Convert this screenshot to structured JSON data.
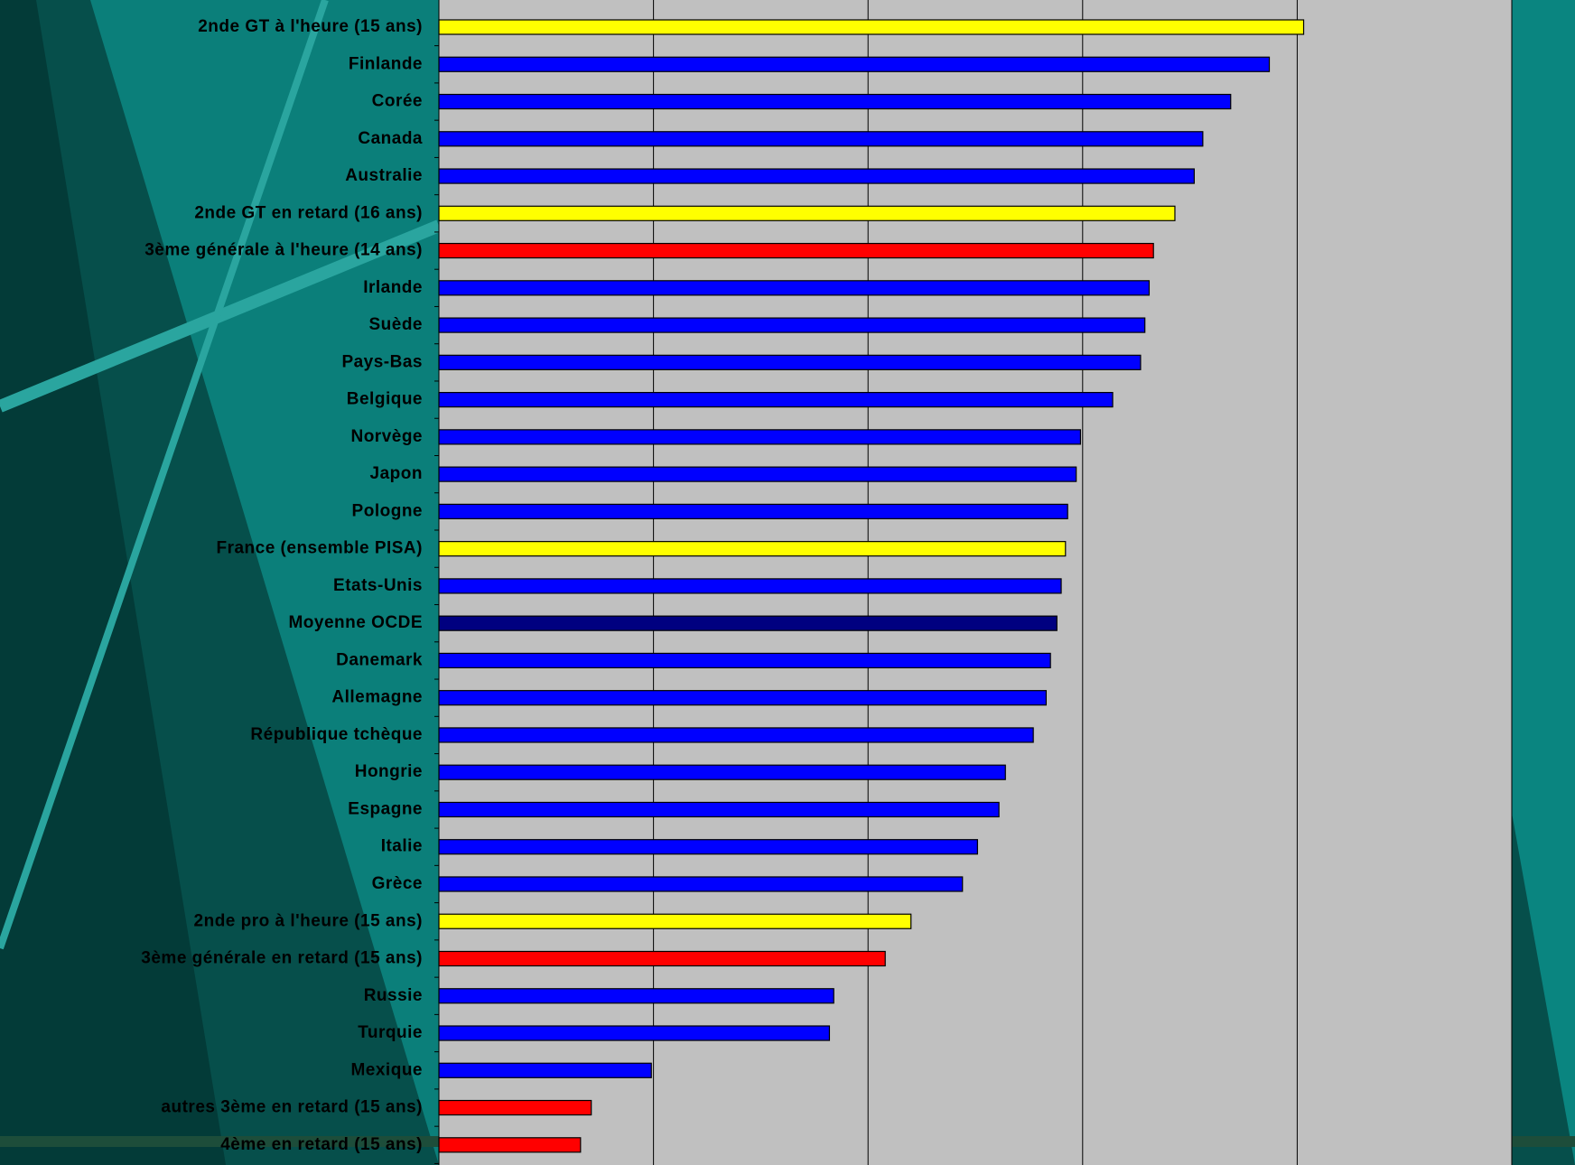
{
  "chart_data": {
    "type": "bar",
    "orientation": "horizontal",
    "categories": [
      "2nde GT à l'heure (15 ans)",
      "Finlande",
      "Corée",
      "Canada",
      "Australie",
      "2nde GT en retard (16 ans)",
      "3ème générale à l'heure (14 ans)",
      "Irlande",
      "Suède",
      "Pays-Bas",
      "Belgique",
      "Norvège",
      "Japon",
      "Pologne",
      "France (ensemble PISA)",
      "Etats-Unis",
      "Moyenne OCDE",
      "Danemark",
      "Allemagne",
      "République tchèque",
      "Hongrie",
      "Espagne",
      "Italie",
      "Grèce",
      "2nde pro à l'heure (15 ans)",
      "3ème générale en retard (15 ans)",
      "Russie",
      "Turquie",
      "Mexique",
      "autres 3ème en retard (15 ans)",
      "4ème en retard (15 ans)"
    ],
    "values": [
      4.03,
      3.87,
      3.69,
      3.56,
      3.52,
      3.43,
      3.33,
      3.31,
      3.29,
      3.27,
      3.14,
      2.99,
      2.97,
      2.93,
      2.92,
      2.9,
      2.88,
      2.85,
      2.83,
      2.77,
      2.64,
      2.61,
      2.51,
      2.44,
      2.2,
      2.08,
      1.84,
      1.82,
      0.99,
      0.71,
      0.66
    ],
    "colors": [
      "#ffff00",
      "#0000ff",
      "#0000ff",
      "#0000ff",
      "#0000ff",
      "#ffff00",
      "#ff0000",
      "#0000ff",
      "#0000ff",
      "#0000ff",
      "#0000ff",
      "#0000ff",
      "#0000ff",
      "#0000ff",
      "#ffff00",
      "#0000ff",
      "#000080",
      "#0000ff",
      "#0000ff",
      "#0000ff",
      "#0000ff",
      "#0000ff",
      "#0000ff",
      "#0000ff",
      "#ffff00",
      "#ff0000",
      "#0000ff",
      "#0000ff",
      "#0000ff",
      "#ff0000",
      "#ff0000"
    ],
    "xlim": [
      0,
      5
    ],
    "xticks": [
      0,
      1,
      2,
      3,
      4,
      5
    ],
    "grid": true
  }
}
